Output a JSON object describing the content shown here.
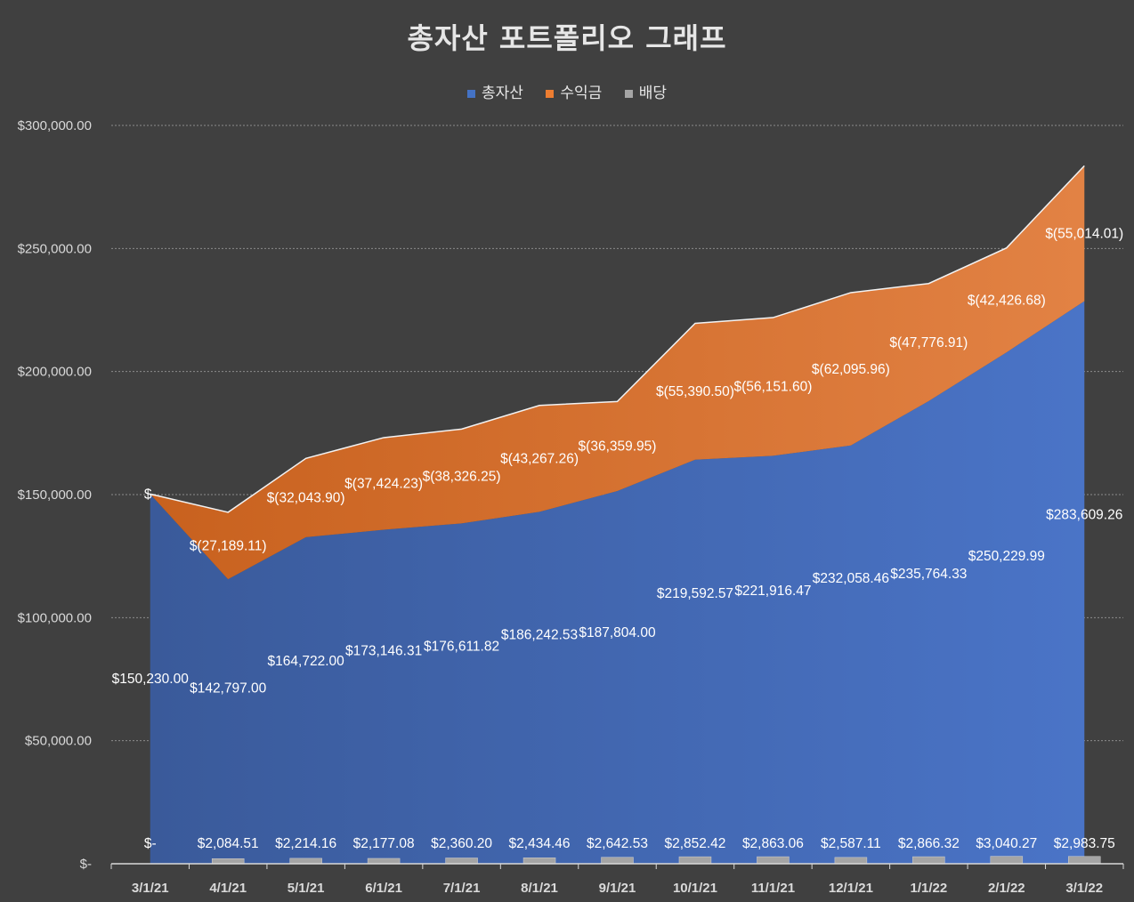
{
  "title": "총자산 포트폴리오 그래프",
  "colors": {
    "total": "#4472c4",
    "profit": "#ed7d31",
    "dividend": "#a5a5a5",
    "background": "#404040"
  },
  "chart_data": {
    "type": "area",
    "title": "총자산 포트폴리오 그래프",
    "categories": [
      "3/1/21",
      "4/1/21",
      "5/1/21",
      "6/1/21",
      "7/1/21",
      "8/1/21",
      "9/1/21",
      "10/1/21",
      "11/1/21",
      "12/1/21",
      "1/1/22",
      "2/1/22",
      "3/1/22"
    ],
    "ylim": [
      0,
      300000
    ],
    "yticks": [
      0,
      50000,
      100000,
      150000,
      200000,
      250000,
      300000
    ],
    "ytick_labels": [
      "$-",
      "$50,000.00",
      "$100,000.00",
      "$150,000.00",
      "$200,000.00",
      "$250,000.00",
      "$300,000.00"
    ],
    "grid": true,
    "legend_position": "top",
    "series": [
      {
        "name": "총자산",
        "values": [
          150230.0,
          142797.0,
          164722.0,
          173146.31,
          176611.82,
          186242.53,
          187804.0,
          219592.57,
          221916.47,
          232058.46,
          235764.33,
          250229.99,
          283609.26
        ],
        "labels": [
          "$150,230.00",
          "$142,797.00",
          "$164,722.00",
          "$173,146.31",
          "$176,611.82",
          "$186,242.53",
          "$187,804.00",
          "$219,592.57",
          "$221,916.47",
          "$232,058.46",
          "$235,764.33",
          "$250,229.99",
          "$283,609.26"
        ]
      },
      {
        "name": "수익금",
        "values": [
          0,
          -27189.11,
          -32043.9,
          -37424.23,
          -38326.25,
          -43267.26,
          -36359.95,
          -55390.5,
          -56151.6,
          -62095.96,
          -47776.91,
          -42426.68,
          -55014.01
        ],
        "labels": [
          "$-",
          "$(27,189.11)",
          "$(32,043.90)",
          "$(37,424.23)",
          "$(38,326.25)",
          "$(43,267.26)",
          "$(36,359.95)",
          "$(55,390.50)",
          "$(56,151.60)",
          "$(62,095.96)",
          "$(47,776.91)",
          "$(42,426.68)",
          "$(55,014.01)"
        ]
      },
      {
        "name": "배당",
        "values": [
          0,
          2084.51,
          2214.16,
          2177.08,
          2360.2,
          2434.46,
          2642.53,
          2852.42,
          2863.06,
          2587.11,
          2866.32,
          3040.27,
          2983.75
        ],
        "labels": [
          "$-",
          "$2,084.51",
          "$2,214.16",
          "$2,177.08",
          "$2,360.20",
          "$2,434.46",
          "$2,642.53",
          "$2,852.42",
          "$2,863.06",
          "$2,587.11",
          "$2,866.32",
          "$3,040.27",
          "$2,983.75"
        ]
      }
    ]
  }
}
